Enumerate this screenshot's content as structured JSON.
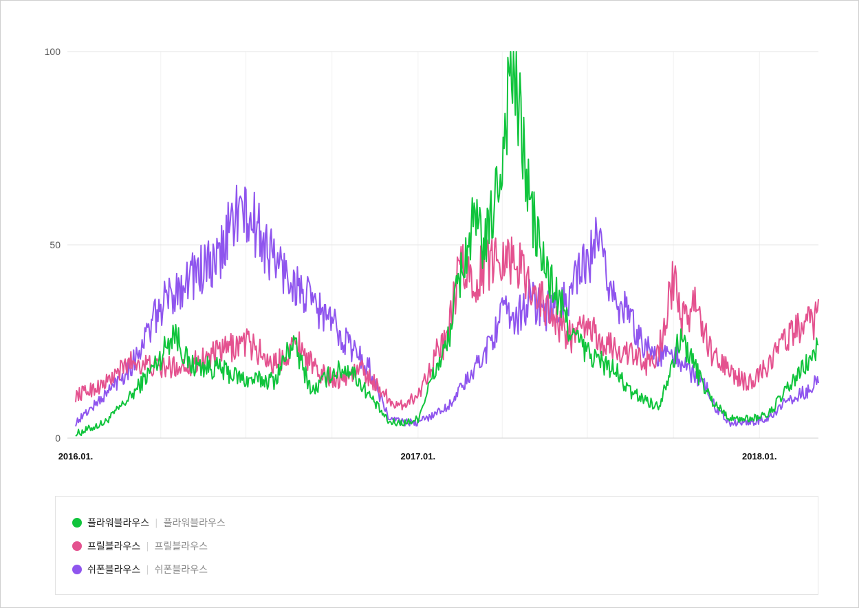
{
  "chart_data": {
    "type": "line",
    "title": "",
    "xlabel": "",
    "ylabel": "",
    "ylim": [
      0,
      100
    ],
    "y_ticks": [
      "0",
      "50",
      "100"
    ],
    "x_ticks": [
      {
        "date": "2016-01-01",
        "label": "2016.01."
      },
      {
        "date": "2017-01-01",
        "label": "2017.01."
      },
      {
        "date": "2018-01-01",
        "label": "2018.01."
      }
    ],
    "x_range": [
      "2016-01-01",
      "2018-03-05"
    ],
    "grid": true,
    "legend_position": "bottom",
    "series": [
      {
        "name": "플라워블라우스",
        "keywords": "플라워블라우스",
        "color": "#10c43c",
        "points": [
          [
            "2016-01-01",
            1
          ],
          [
            "2016-02-01",
            4
          ],
          [
            "2016-03-01",
            11
          ],
          [
            "2016-04-01",
            21
          ],
          [
            "2016-04-15",
            28
          ],
          [
            "2016-05-01",
            19
          ],
          [
            "2016-06-01",
            18
          ],
          [
            "2016-07-01",
            15
          ],
          [
            "2016-08-01",
            15
          ],
          [
            "2016-08-20",
            25
          ],
          [
            "2016-09-10",
            12
          ],
          [
            "2016-10-01",
            17
          ],
          [
            "2016-10-20",
            18
          ],
          [
            "2016-11-10",
            11
          ],
          [
            "2016-12-01",
            4
          ],
          [
            "2016-12-20",
            4
          ],
          [
            "2017-01-01",
            5
          ],
          [
            "2017-01-15",
            15
          ],
          [
            "2017-02-01",
            24
          ],
          [
            "2017-02-15",
            42
          ],
          [
            "2017-03-01",
            55
          ],
          [
            "2017-03-15",
            50
          ],
          [
            "2017-04-01",
            72
          ],
          [
            "2017-04-10",
            98
          ],
          [
            "2017-04-20",
            82
          ],
          [
            "2017-05-01",
            60
          ],
          [
            "2017-05-15",
            45
          ],
          [
            "2017-06-01",
            35
          ],
          [
            "2017-06-15",
            27
          ],
          [
            "2017-07-01",
            22
          ],
          [
            "2017-07-15",
            20
          ],
          [
            "2017-08-01",
            17
          ],
          [
            "2017-08-15",
            12
          ],
          [
            "2017-09-01",
            10
          ],
          [
            "2017-09-15",
            8
          ],
          [
            "2017-10-01",
            21
          ],
          [
            "2017-10-10",
            26
          ],
          [
            "2017-10-25",
            18
          ],
          [
            "2017-11-10",
            10
          ],
          [
            "2017-12-01",
            5
          ],
          [
            "2017-12-20",
            5
          ],
          [
            "2018-01-10",
            6
          ],
          [
            "2018-02-01",
            13
          ],
          [
            "2018-02-20",
            19
          ],
          [
            "2018-03-05",
            23
          ]
        ]
      },
      {
        "name": "프릴블라우스",
        "keywords": "프릴블라우스",
        "color": "#e4528f",
        "points": [
          [
            "2016-01-01",
            11
          ],
          [
            "2016-02-01",
            14
          ],
          [
            "2016-03-01",
            20
          ],
          [
            "2016-04-01",
            18
          ],
          [
            "2016-05-01",
            19
          ],
          [
            "2016-06-01",
            22
          ],
          [
            "2016-07-01",
            25
          ],
          [
            "2016-08-01",
            19
          ],
          [
            "2016-08-25",
            25
          ],
          [
            "2016-09-15",
            17
          ],
          [
            "2016-10-10",
            15
          ],
          [
            "2016-11-01",
            18
          ],
          [
            "2016-11-20",
            13
          ],
          [
            "2016-12-10",
            8
          ],
          [
            "2017-01-01",
            11
          ],
          [
            "2017-01-20",
            22
          ],
          [
            "2017-02-01",
            25
          ],
          [
            "2017-02-15",
            45
          ],
          [
            "2017-03-01",
            40
          ],
          [
            "2017-03-15",
            45
          ],
          [
            "2017-04-01",
            48
          ],
          [
            "2017-04-15",
            46
          ],
          [
            "2017-05-01",
            40
          ],
          [
            "2017-05-15",
            35
          ],
          [
            "2017-06-01",
            29
          ],
          [
            "2017-06-15",
            26
          ],
          [
            "2017-07-01",
            29
          ],
          [
            "2017-07-15",
            25
          ],
          [
            "2017-08-01",
            23
          ],
          [
            "2017-08-15",
            22
          ],
          [
            "2017-09-01",
            19
          ],
          [
            "2017-09-15",
            22
          ],
          [
            "2017-10-01",
            41
          ],
          [
            "2017-10-10",
            30
          ],
          [
            "2017-10-25",
            35
          ],
          [
            "2017-11-10",
            22
          ],
          [
            "2017-12-01",
            17
          ],
          [
            "2017-12-20",
            14
          ],
          [
            "2018-01-10",
            19
          ],
          [
            "2018-02-01",
            27
          ],
          [
            "2018-02-20",
            29
          ],
          [
            "2018-03-05",
            31
          ]
        ]
      },
      {
        "name": "쉬폰블라우스",
        "keywords": "쉬폰블라우스",
        "color": "#8f55ee",
        "points": [
          [
            "2016-01-01",
            4
          ],
          [
            "2016-02-01",
            11
          ],
          [
            "2016-03-01",
            19
          ],
          [
            "2016-04-01",
            34
          ],
          [
            "2016-05-01",
            42
          ],
          [
            "2016-06-01",
            45
          ],
          [
            "2016-06-20",
            59
          ],
          [
            "2016-07-10",
            55
          ],
          [
            "2016-08-01",
            46
          ],
          [
            "2016-09-01",
            37
          ],
          [
            "2016-10-01",
            30
          ],
          [
            "2016-10-20",
            24
          ],
          [
            "2016-11-10",
            18
          ],
          [
            "2016-12-01",
            5
          ],
          [
            "2016-12-20",
            4
          ],
          [
            "2017-01-01",
            4
          ],
          [
            "2017-02-01",
            8
          ],
          [
            "2017-03-01",
            17
          ],
          [
            "2017-03-15",
            23
          ],
          [
            "2017-04-01",
            32
          ],
          [
            "2017-04-15",
            31
          ],
          [
            "2017-05-01",
            36
          ],
          [
            "2017-05-15",
            33
          ],
          [
            "2017-06-01",
            33
          ],
          [
            "2017-06-15",
            39
          ],
          [
            "2017-07-01",
            45
          ],
          [
            "2017-07-10",
            50
          ],
          [
            "2017-08-01",
            36
          ],
          [
            "2017-08-15",
            31
          ],
          [
            "2017-09-01",
            24
          ],
          [
            "2017-09-15",
            21
          ],
          [
            "2017-10-01",
            22
          ],
          [
            "2017-10-15",
            18
          ],
          [
            "2017-11-01",
            15
          ],
          [
            "2017-11-15",
            8
          ],
          [
            "2017-12-01",
            4
          ],
          [
            "2017-12-20",
            4
          ],
          [
            "2018-01-10",
            5
          ],
          [
            "2018-02-01",
            10
          ],
          [
            "2018-02-20",
            12
          ],
          [
            "2018-03-05",
            15
          ]
        ]
      }
    ]
  }
}
